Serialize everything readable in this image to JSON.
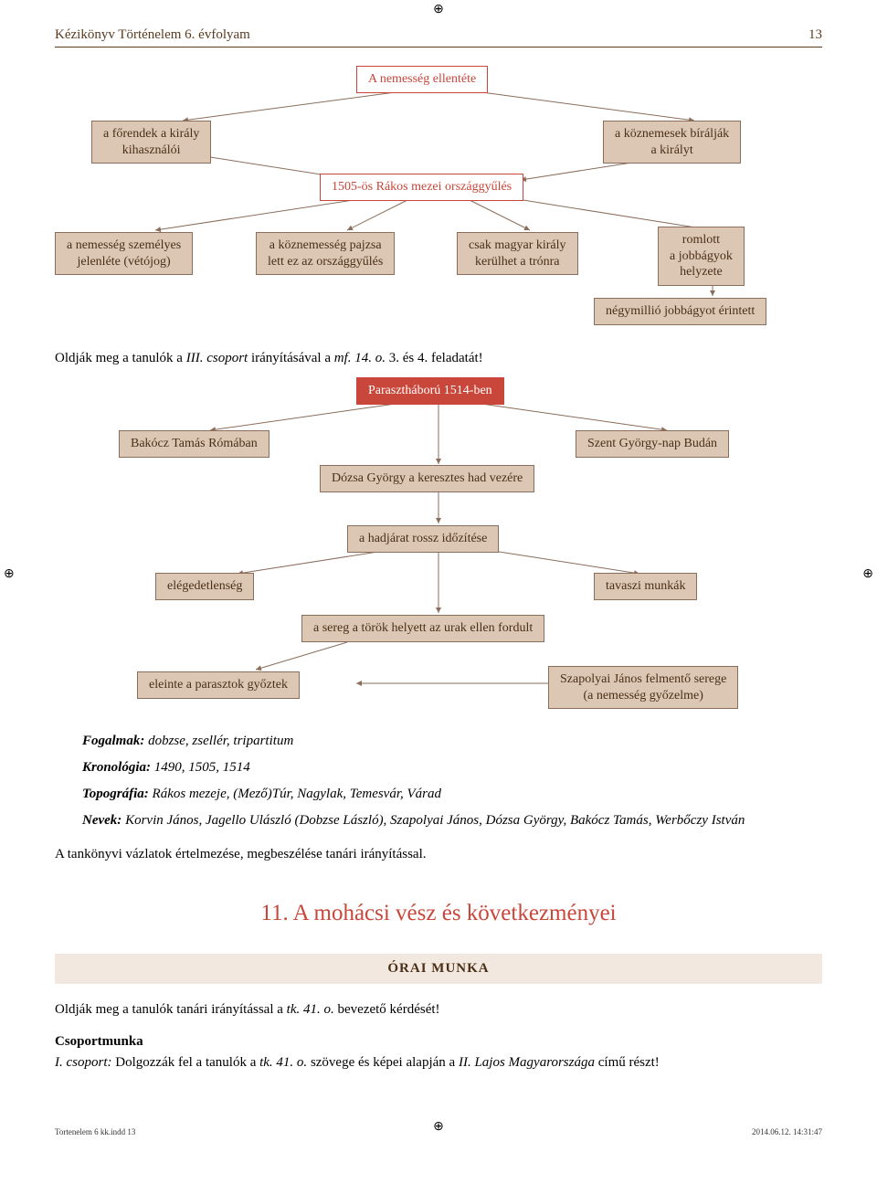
{
  "header": {
    "title": "Kézikönyv Történelem 6. évfolyam",
    "page": "13"
  },
  "colors": {
    "node_fill": "#dcc7b5",
    "node_border": "#8a6d5a",
    "accent": "#c9463a",
    "text_brown": "#4a2f17",
    "arrow": "#8a6d5a",
    "orai_bg": "#f2e8df"
  },
  "diagram1": {
    "root": "A nemesség ellentéte",
    "row1_left": "a főrendek a király\nkihasználói",
    "row1_right": "a köznemesek bírálják\na királyt",
    "mid": "1505-ös Rákos mezei országgyűlés",
    "leaf1": "a nemesség személyes\njelenléte (vétójog)",
    "leaf2": "a köznemesség pajzsa\nlett ez az országgyűlés",
    "leaf3": "csak magyar király\nkerülhet a trónra",
    "leaf4": "romlott\na jobbágyok\nhelyzete",
    "leaf5": "négymillió jobbágyot érintett"
  },
  "between1": {
    "prefix": "Oldják meg a tanulók a ",
    "italic1": "III. csoport",
    "mid": " irányításával a ",
    "italic2": "mf. 14. o.",
    "suffix": " 3. és 4. feladatát!"
  },
  "diagram2": {
    "root": "Parasztháború 1514-ben",
    "n1": "Bakócz Tamás Rómában",
    "n2": "Szent György-nap Budán",
    "n3": "Dózsa György a keresztes had vezére",
    "n4": "a hadjárat rossz időzítése",
    "n5": "elégedetlenség",
    "n6": "tavaszi munkák",
    "n7": "a sereg a török helyett az urak ellen fordult",
    "n8": "eleinte  a parasztok győztek",
    "n9": "Szapolyai János felmentő serege\n(a nemesség győzelme)"
  },
  "info": {
    "fogalmak_label": "Fogalmak:",
    "fogalmak": " dobzse, zsellér, tripartitum",
    "kron_label": "Kronológia:",
    "kron": " 1490, 1505, 1514",
    "topo_label": "Topográfia:",
    "topo": " Rákos mezeje, (Mező)Túr, Nagylak, Temesvár, Várad",
    "nevek_label": "Nevek:",
    "nevek": " Korvin János, Jagello Ulászló (Dobzse László), Szapolyai János, Dózsa György, Bakócz Tamás, Werbőczy István",
    "closing": "A tankönyvi vázlatok értelmezése, megbeszélése tanári irányítással."
  },
  "section": {
    "title": "11. A mohácsi vész és következményei",
    "orai": "ÓRAI MUNKA",
    "line1_a": "Oldják meg a tanulók tanári irányítással a ",
    "line1_i": "tk. 41. o.",
    "line1_b": " bevezető kérdését!",
    "cs_label": "Csoportmunka",
    "cs_a": "I. csoport:",
    "cs_b": " Dolgozzák fel a tanulók a ",
    "cs_i1": "tk. 41. o.",
    "cs_c": " szövege és képei alapján a ",
    "cs_i2": "II. Lajos Magyarországa",
    "cs_d": " című részt!"
  },
  "footer": {
    "left": "Tortenelem 6 kk.indd   13",
    "right": "2014.06.12.   14:31:47"
  }
}
